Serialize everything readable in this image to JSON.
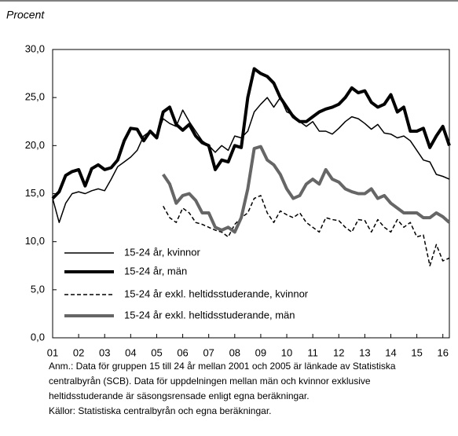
{
  "chart_data": {
    "type": "line",
    "y_label": "Procent",
    "x": [
      2001,
      2001.25,
      2001.5,
      2001.75,
      2002,
      2002.25,
      2002.5,
      2002.75,
      2003,
      2003.25,
      2003.5,
      2003.75,
      2004,
      2004.25,
      2004.5,
      2004.75,
      2005,
      2005.25,
      2005.5,
      2005.75,
      2006,
      2006.25,
      2006.5,
      2006.75,
      2007,
      2007.25,
      2007.5,
      2007.75,
      2008,
      2008.25,
      2008.5,
      2008.75,
      2009,
      2009.25,
      2009.5,
      2009.75,
      2010,
      2010.25,
      2010.5,
      2010.75,
      2011,
      2011.25,
      2011.5,
      2011.75,
      2012,
      2012.25,
      2012.5,
      2012.75,
      2013,
      2013.25,
      2013.5,
      2013.75,
      2014,
      2014.25,
      2014.5,
      2014.75,
      2015,
      2015.25,
      2015.5,
      2015.75,
      2016,
      2016.25
    ],
    "series": [
      {
        "name": "15-24 år, kvinnor",
        "color": "#000000",
        "line_width": 1.5,
        "dashed": false,
        "values": [
          14.5,
          12.0,
          14.0,
          15.0,
          15.2,
          15.0,
          15.3,
          15.5,
          15.3,
          16.5,
          17.8,
          18.3,
          18.8,
          19.5,
          21.0,
          21.5,
          21.0,
          22.8,
          22.3,
          22.0,
          23.7,
          22.5,
          21.5,
          20.5,
          20.0,
          19.3,
          20.0,
          19.5,
          21.0,
          20.8,
          21.5,
          23.5,
          24.3,
          25.0,
          24.0,
          25.0,
          23.5,
          23.2,
          22.5,
          22.0,
          22.5,
          21.5,
          21.5,
          21.2,
          21.8,
          22.5,
          23.0,
          22.8,
          22.3,
          21.7,
          22.2,
          21.3,
          21.2,
          20.8,
          21.0,
          20.5,
          19.5,
          18.5,
          18.3,
          17.0,
          16.8,
          16.5
        ]
      },
      {
        "name": "15-24 år, män",
        "color": "#000000",
        "line_width": 4,
        "dashed": false,
        "values": [
          14.5,
          15.2,
          16.9,
          17.3,
          17.5,
          15.8,
          17.6,
          18.0,
          17.5,
          17.7,
          18.5,
          20.5,
          21.8,
          21.7,
          20.5,
          21.5,
          20.8,
          23.5,
          24.0,
          22.2,
          21.6,
          22.2,
          21.0,
          20.3,
          20.0,
          17.5,
          18.5,
          18.3,
          20.0,
          19.8,
          25.0,
          28.0,
          27.5,
          27.2,
          26.5,
          25.0,
          24.0,
          23.0,
          22.5,
          22.5,
          23.0,
          23.5,
          23.8,
          24.0,
          24.3,
          25.0,
          26.0,
          25.5,
          25.7,
          24.5,
          24.0,
          24.3,
          25.3,
          23.5,
          24.0,
          21.5,
          21.5,
          21.8,
          19.8,
          21.0,
          22.0,
          20.0
        ]
      },
      {
        "name": "15-24 år exkl. heltidsstuderande, kvinnor",
        "color": "#000000",
        "line_width": 1.5,
        "dashed": true,
        "values": [
          null,
          null,
          null,
          null,
          null,
          null,
          null,
          null,
          null,
          null,
          null,
          null,
          null,
          null,
          null,
          null,
          null,
          13.7,
          12.5,
          12.0,
          13.5,
          13.0,
          12.0,
          11.8,
          11.5,
          11.2,
          11.0,
          10.5,
          11.8,
          12.5,
          13.0,
          14.5,
          14.8,
          13.0,
          12.0,
          13.2,
          12.8,
          12.5,
          13.0,
          12.0,
          11.5,
          11.0,
          12.5,
          12.3,
          12.2,
          11.5,
          11.0,
          12.3,
          12.2,
          11.0,
          12.3,
          11.5,
          11.0,
          12.3,
          11.5,
          12.0,
          10.5,
          10.7,
          7.5,
          9.7,
          8.0,
          8.3
        ]
      },
      {
        "name": "15-24 år exkl. heltidsstuderande, män",
        "color": "#666666",
        "line_width": 4,
        "dashed": false,
        "values": [
          null,
          null,
          null,
          null,
          null,
          null,
          null,
          null,
          null,
          null,
          null,
          null,
          null,
          null,
          null,
          null,
          null,
          17.0,
          16.0,
          14.0,
          14.8,
          15.0,
          14.3,
          13.0,
          13.0,
          11.5,
          11.2,
          11.5,
          11.0,
          12.5,
          15.5,
          19.7,
          19.9,
          18.5,
          18.0,
          17.0,
          15.5,
          14.5,
          14.8,
          16.0,
          16.5,
          16.0,
          17.5,
          16.5,
          16.2,
          15.5,
          15.2,
          15.0,
          15.0,
          15.5,
          14.5,
          14.8,
          14.0,
          13.5,
          13.0,
          13.0,
          13.0,
          12.5,
          12.5,
          13.0,
          12.6,
          12.0
        ]
      }
    ],
    "xlim": [
      2001,
      2016.25
    ],
    "xticks": [
      {
        "value": 2001,
        "label": "01"
      },
      {
        "value": 2002,
        "label": "02"
      },
      {
        "value": 2003,
        "label": "03"
      },
      {
        "value": 2004,
        "label": "04"
      },
      {
        "value": 2005,
        "label": "05"
      },
      {
        "value": 2006,
        "label": "06"
      },
      {
        "value": 2007,
        "label": "07"
      },
      {
        "value": 2008,
        "label": "08"
      },
      {
        "value": 2009,
        "label": "09"
      },
      {
        "value": 2010,
        "label": "10"
      },
      {
        "value": 2011,
        "label": "11"
      },
      {
        "value": 2012,
        "label": "12"
      },
      {
        "value": 2013,
        "label": "13"
      },
      {
        "value": 2014,
        "label": "14"
      },
      {
        "value": 2015,
        "label": "15"
      },
      {
        "value": 2016,
        "label": "16"
      }
    ],
    "ylim": [
      0,
      30
    ],
    "yticks": [
      {
        "value": 0,
        "label": "0,0"
      },
      {
        "value": 5,
        "label": "5,0"
      },
      {
        "value": 10,
        "label": "10,0"
      },
      {
        "value": 15,
        "label": "15,0"
      },
      {
        "value": 20,
        "label": "20,0"
      },
      {
        "value": 25,
        "label": "25,0"
      },
      {
        "value": 30,
        "label": "30,0"
      }
    ],
    "grid": false,
    "legend_position": "lower left",
    "note_lines": [
      "Anm.: Data för gruppen 15 till 24 år mellan 2001 och 2005 är länkade av Statistiska",
      "centralbyrån (SCB). Data för uppdelningen mellan män och kvinnor exklusive",
      "heltidsstuderande är säsongsrensade enligt egna beräkningar.",
      "Källor: Statistiska centralbyrån och egna beräkningar."
    ]
  }
}
